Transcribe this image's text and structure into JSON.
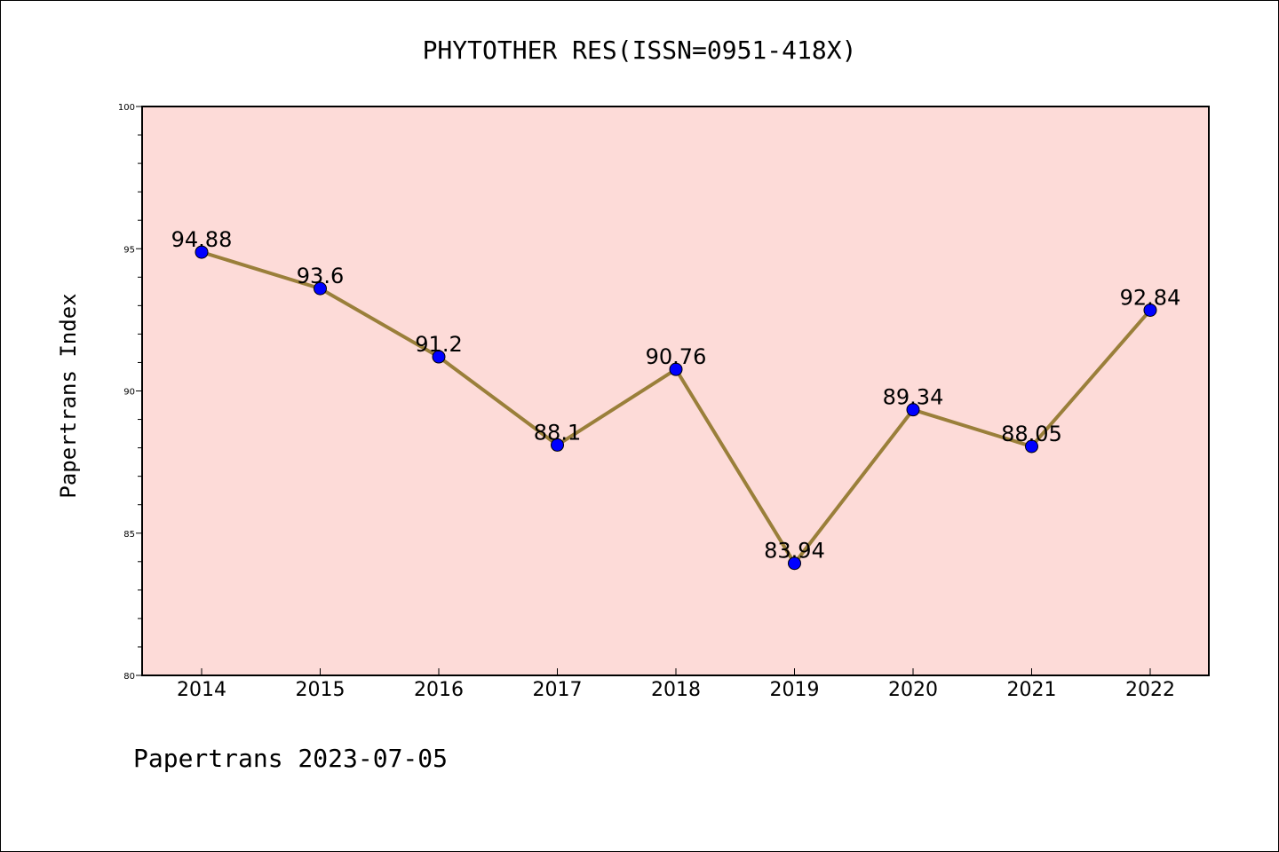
{
  "chart_data": {
    "type": "line",
    "title": "PHYTOTHER RES(ISSN=0951-418X)",
    "xlabel": "",
    "ylabel": "Papertrans Index",
    "categories": [
      "2014",
      "2015",
      "2016",
      "2017",
      "2018",
      "2019",
      "2020",
      "2021",
      "2022"
    ],
    "values": [
      94.88,
      93.6,
      91.2,
      88.1,
      90.76,
      83.94,
      89.34,
      88.05,
      92.84
    ],
    "data_labels": [
      "94.88",
      "93.6",
      "91.2",
      "88.1",
      "90.76",
      "83.94",
      "89.34",
      "88.05",
      "92.84"
    ],
    "ylim": [
      80,
      100
    ],
    "yticks": [
      "80",
      "85",
      "90",
      "95",
      "100"
    ],
    "grid": false,
    "legend": "none",
    "colors": {
      "plot_background": "#fddbd8",
      "line": "#9a7f3a",
      "marker": "#0000ff"
    }
  },
  "footer": "Papertrans 2023-07-05"
}
